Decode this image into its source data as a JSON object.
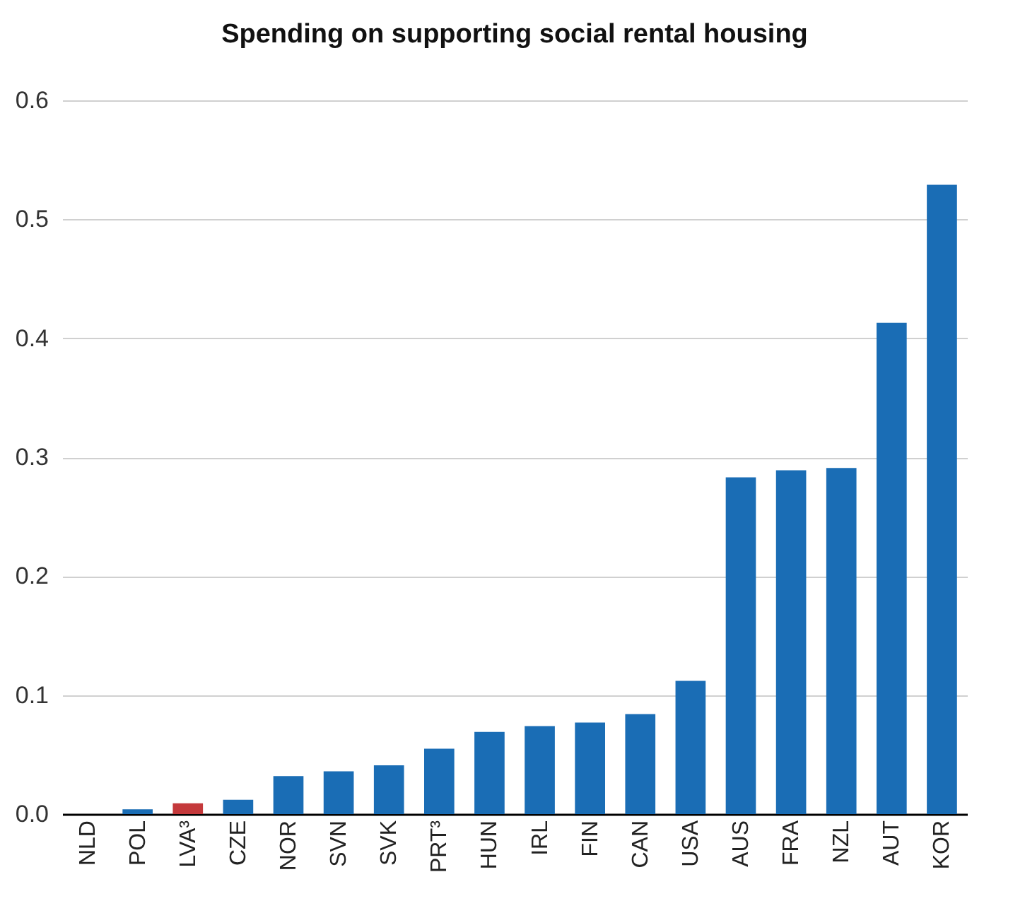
{
  "chart_data": {
    "type": "bar",
    "title": "Spending on supporting social rental housing",
    "categories": [
      "NLD",
      "POL",
      "LVA³",
      "CZE",
      "NOR",
      "SVN",
      "SVK",
      "PRT³",
      "HUN",
      "IRL",
      "FIN",
      "CAN",
      "USA",
      "AUS",
      "FRA",
      "NZL",
      "AUT",
      "KOR"
    ],
    "values": [
      0,
      0.004,
      0.009,
      0.012,
      0.032,
      0.036,
      0.041,
      0.055,
      0.069,
      0.074,
      0.077,
      0.084,
      0.112,
      0.283,
      0.289,
      0.291,
      0.413,
      0.529
    ],
    "colors": [
      "#1a6db5",
      "#1a6db5",
      "#c4393b",
      "#1a6db5",
      "#1a6db5",
      "#1a6db5",
      "#1a6db5",
      "#1a6db5",
      "#1a6db5",
      "#1a6db5",
      "#1a6db5",
      "#1a6db5",
      "#1a6db5",
      "#1a6db5",
      "#1a6db5",
      "#1a6db5",
      "#1a6db5",
      "#1a6db5"
    ],
    "ylim": [
      0,
      0.6
    ],
    "yticks": [
      {
        "value": 0,
        "label": "0.0"
      },
      {
        "value": 0.1,
        "label": "0.1"
      },
      {
        "value": 0.2,
        "label": "0.2"
      },
      {
        "value": 0.3,
        "label": "0.3"
      },
      {
        "value": 0.4,
        "label": "0.4"
      },
      {
        "value": 0.5,
        "label": "0.5"
      },
      {
        "value": 0.6,
        "label": "0.6"
      }
    ],
    "grid": "y"
  }
}
